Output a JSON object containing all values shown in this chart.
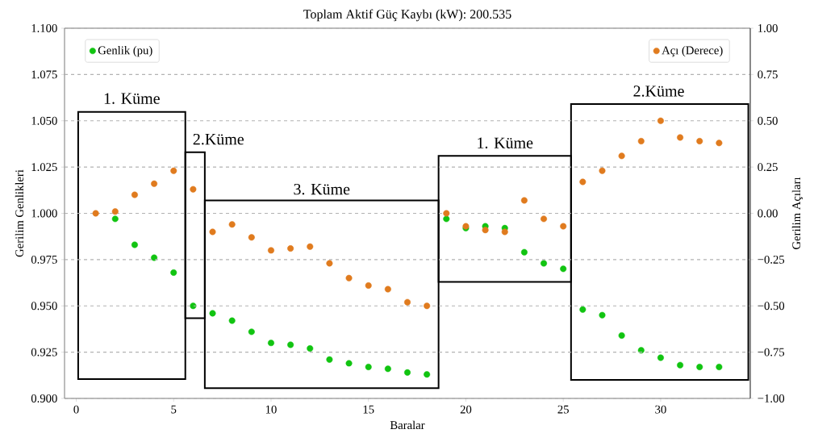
{
  "chart_data": {
    "type": "scatter",
    "title": "Toplam Aktif Güç Kaybı (kW): 200.535",
    "xlabel": "Baralar",
    "ylabel": "Gerilim Genlikleri",
    "y2label": "Gerilim Açıları",
    "x": [
      1,
      2,
      3,
      4,
      5,
      6,
      7,
      8,
      9,
      10,
      11,
      12,
      13,
      14,
      15,
      16,
      17,
      18,
      19,
      20,
      21,
      22,
      23,
      24,
      25,
      26,
      27,
      28,
      29,
      30,
      31,
      32,
      33
    ],
    "series": [
      {
        "name": "Genlik (pu)",
        "color": "#11c411",
        "values": [
          null,
          0.997,
          0.983,
          0.976,
          0.968,
          0.95,
          0.946,
          0.942,
          0.936,
          0.93,
          0.929,
          0.927,
          0.921,
          0.919,
          0.917,
          0.916,
          0.914,
          0.913,
          0.997,
          0.992,
          0.993,
          0.992,
          0.979,
          0.973,
          0.97,
          0.948,
          0.945,
          0.934,
          0.926,
          0.922,
          0.918,
          0.917,
          0.917
        ]
      },
      {
        "name": "Açı (Derece)",
        "color": "#e07b1e",
        "axis": "y2",
        "values": [
          0.0,
          0.01,
          0.1,
          0.16,
          0.23,
          0.13,
          -0.1,
          -0.06,
          -0.13,
          -0.2,
          -0.19,
          -0.18,
          -0.27,
          -0.35,
          -0.39,
          -0.41,
          -0.48,
          -0.5,
          0.0,
          -0.07,
          -0.09,
          -0.1,
          0.07,
          -0.03,
          -0.07,
          0.17,
          0.23,
          0.31,
          0.39,
          0.5,
          0.41,
          0.39,
          0.38
        ]
      }
    ],
    "xlim": [
      -0.6,
      34.6
    ],
    "xticks": [
      0,
      5,
      10,
      15,
      20,
      25,
      30
    ],
    "ylim": [
      0.9,
      1.1
    ],
    "yticks": [
      {
        "value": 0.9,
        "label": "0.900"
      },
      {
        "value": 0.925,
        "label": "0.925"
      },
      {
        "value": 0.95,
        "label": "0.950"
      },
      {
        "value": 0.975,
        "label": "0.975"
      },
      {
        "value": 1.0,
        "label": "1.000"
      },
      {
        "value": 1.025,
        "label": "1.025"
      },
      {
        "value": 1.05,
        "label": "1.050"
      },
      {
        "value": 1.075,
        "label": "1.075"
      },
      {
        "value": 1.1,
        "label": "1.100"
      }
    ],
    "y2lim": [
      -1,
      1
    ],
    "y2ticks": [
      {
        "value": -1,
        "label": "−1.00"
      },
      {
        "value": -0.75,
        "label": "−0.75"
      },
      {
        "value": -0.5,
        "label": "−0.50"
      },
      {
        "value": -0.25,
        "label": "−0.25"
      },
      {
        "value": 0,
        "label": "0.00"
      },
      {
        "value": 0.25,
        "label": "0.25"
      },
      {
        "value": 0.5,
        "label": "0.50"
      },
      {
        "value": 0.75,
        "label": "0.75"
      },
      {
        "value": 1,
        "label": "1.00"
      }
    ],
    "annotations": [
      "1. Küme",
      "2.Küme",
      "3. Küme",
      "1. Küme",
      "2.Küme"
    ],
    "grid": "y",
    "legend": "top",
    "marker": "circle"
  }
}
